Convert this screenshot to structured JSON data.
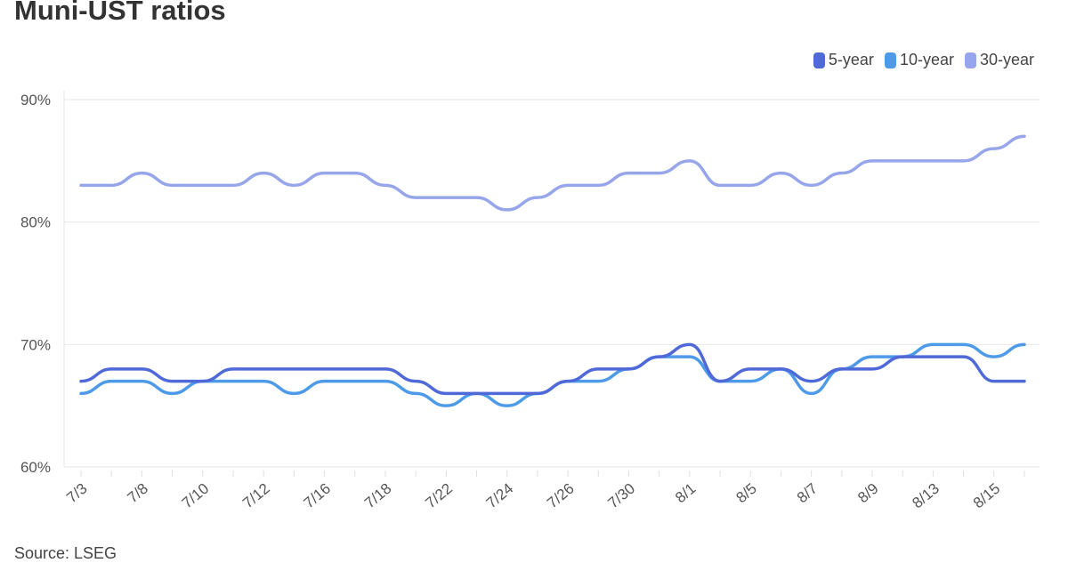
{
  "title": "Muni-UST ratios",
  "source": "Source: LSEG",
  "chart_data": {
    "type": "line",
    "title": "Muni-UST ratios",
    "xlabel": "",
    "ylabel": "",
    "ylim": [
      60,
      90
    ],
    "yticks": [
      60,
      70,
      80,
      90
    ],
    "ytick_labels": [
      "60%",
      "70%",
      "80%",
      "90%"
    ],
    "grid": true,
    "legend_position": "top-right",
    "x": [
      "7/3",
      "7/5",
      "7/8",
      "7/9",
      "7/10",
      "7/11",
      "7/12",
      "7/15",
      "7/16",
      "7/17",
      "7/18",
      "7/19",
      "7/22",
      "7/23",
      "7/24",
      "7/25",
      "7/26",
      "7/29",
      "7/30",
      "7/31",
      "8/1",
      "8/2",
      "8/5",
      "8/6",
      "8/7",
      "8/8",
      "8/9",
      "8/12",
      "8/13",
      "8/14",
      "8/15",
      "8/16"
    ],
    "xtick_labels": [
      "7/3",
      "7/8",
      "7/10",
      "7/12",
      "7/16",
      "7/18",
      "7/22",
      "7/24",
      "7/26",
      "7/30",
      "8/1",
      "8/5",
      "8/7",
      "8/9",
      "8/13",
      "8/15"
    ],
    "series": [
      {
        "name": "5-year",
        "color": "#4f6ad8",
        "values": [
          67,
          68,
          68,
          67,
          67,
          68,
          68,
          68,
          68,
          68,
          68,
          67,
          66,
          66,
          66,
          66,
          67,
          68,
          68,
          69,
          70,
          67,
          68,
          68,
          67,
          68,
          68,
          69,
          69,
          69,
          67,
          67
        ]
      },
      {
        "name": "10-year",
        "color": "#4d9be8",
        "values": [
          66,
          67,
          67,
          66,
          67,
          67,
          67,
          66,
          67,
          67,
          67,
          66,
          65,
          66,
          65,
          66,
          67,
          67,
          68,
          69,
          69,
          67,
          67,
          68,
          66,
          68,
          69,
          69,
          70,
          70,
          69,
          70
        ]
      },
      {
        "name": "30-year",
        "color": "#97a6ea",
        "values": [
          83,
          83,
          84,
          83,
          83,
          83,
          84,
          83,
          84,
          84,
          83,
          82,
          82,
          82,
          81,
          82,
          83,
          83,
          84,
          84,
          85,
          83,
          83,
          84,
          83,
          84,
          85,
          85,
          85,
          85,
          86,
          87
        ]
      }
    ]
  }
}
